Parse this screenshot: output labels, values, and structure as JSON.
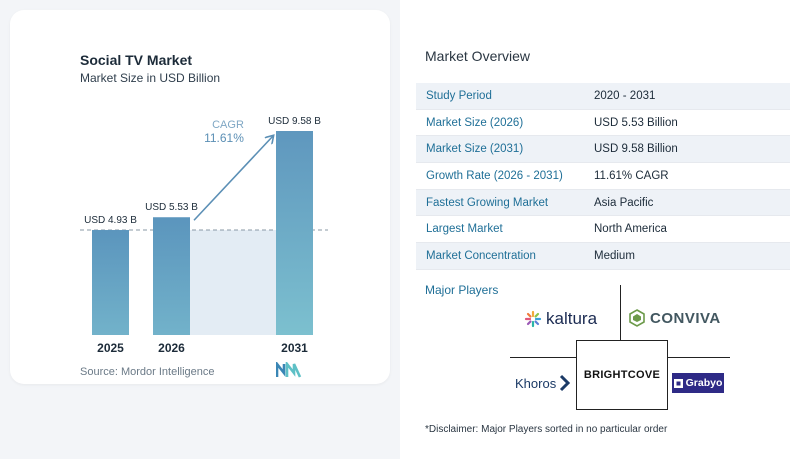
{
  "left": {
    "title": "Social TV Market",
    "subtitle": "Market Size in USD Billion",
    "source": "Source: Mordor Intelligence"
  },
  "chart_data": {
    "type": "bar",
    "categories": [
      "2025",
      "2026",
      "2031"
    ],
    "values": [
      4.93,
      5.53,
      9.58
    ],
    "data_labels": [
      "USD 4.93 B",
      "USD 5.53 B",
      "USD 9.58 B"
    ],
    "title": "Social TV Market",
    "subtitle": "Market Size in USD Billion",
    "xlabel": "",
    "ylabel": "",
    "ylim": [
      0,
      9.58
    ],
    "annotation": {
      "label": "CAGR",
      "value": "11.61%"
    },
    "grid": false,
    "colors": {
      "bar": "#5b95bd",
      "bar_last": "#6ba7c5",
      "shade": "#e3ecf4",
      "arrow": "#5b8fb5"
    }
  },
  "overview": {
    "title": "Market Overview",
    "rows": [
      {
        "label": "Study Period",
        "value": "2020 - 2031"
      },
      {
        "label": "Market Size (2026)",
        "value": "USD 5.53 Billion"
      },
      {
        "label": "Market Size (2031)",
        "value": "USD 9.58 Billion"
      },
      {
        "label": "Growth Rate (2026 - 2031)",
        "value": "11.61% CAGR"
      },
      {
        "label": "Fastest Growing Market",
        "value": "Asia Pacific"
      },
      {
        "label": "Largest Market",
        "value": "North America"
      },
      {
        "label": "Market Concentration",
        "value": "Medium"
      }
    ]
  },
  "players": {
    "title": "Major Players",
    "names": [
      "kaltura",
      "CONVIVA",
      "Khoros",
      "BRIGHTCOVE",
      "Grabyo"
    ]
  },
  "disclaimer": "*Disclaimer: Major Players sorted in no particular order"
}
